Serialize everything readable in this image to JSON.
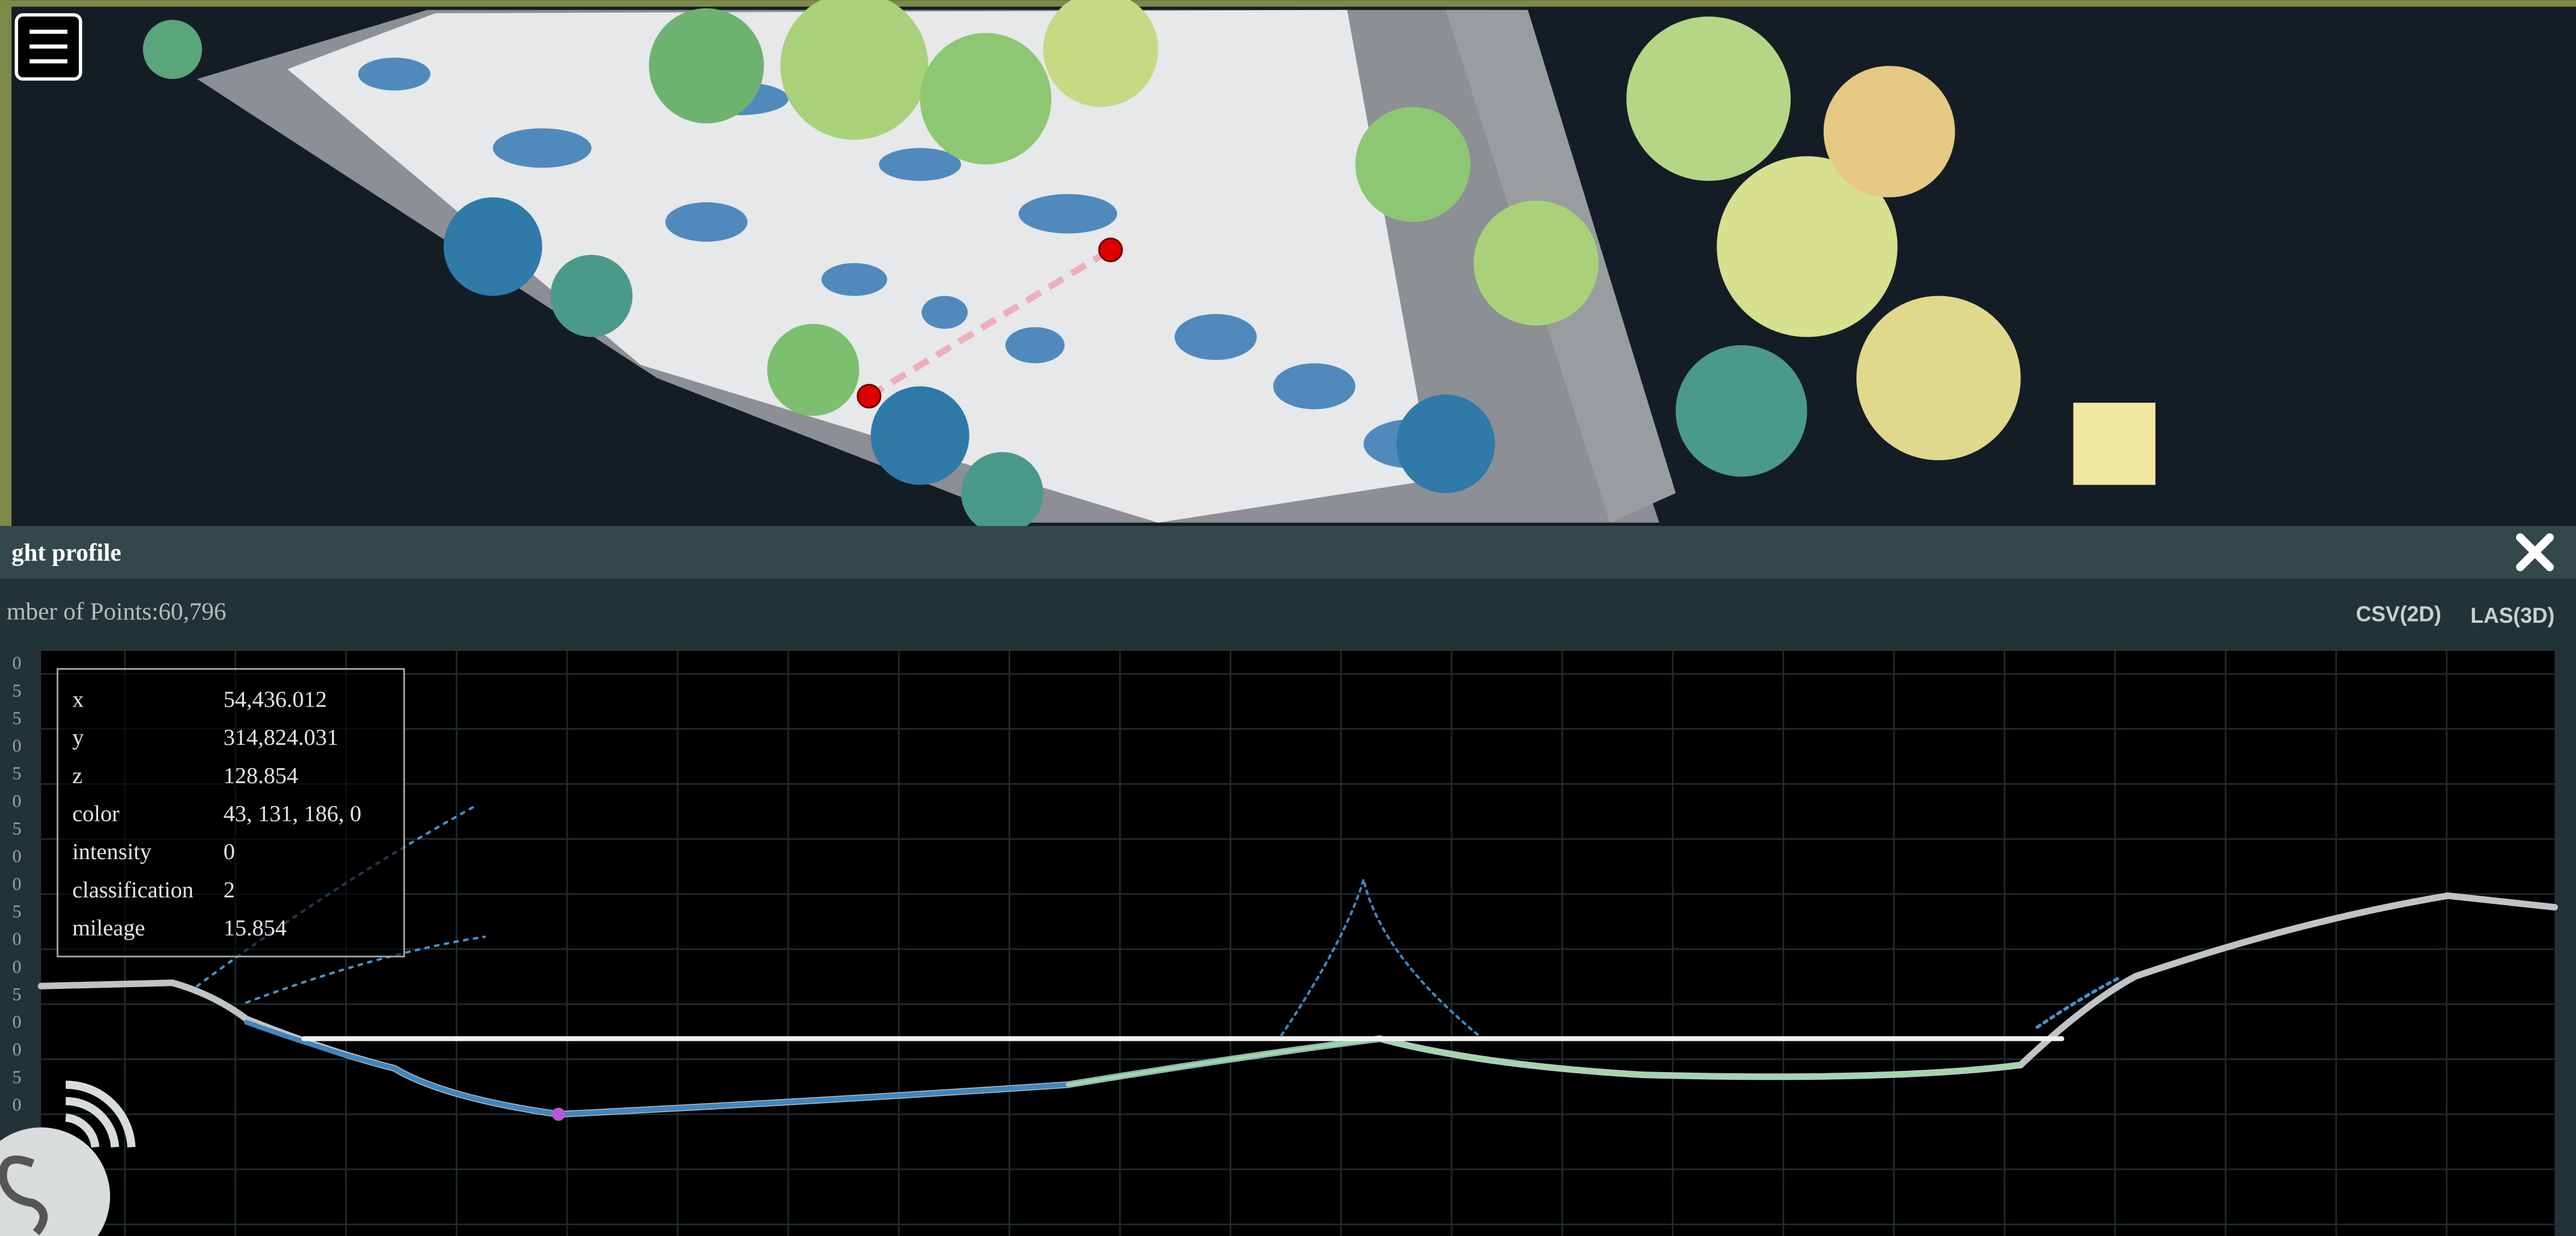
{
  "panel": {
    "title": "ght profile",
    "point_count": "mber of Points:60,796",
    "buttons": [
      "CSV(2D)",
      "LAS(3D)"
    ]
  },
  "y_axis_labels": [
    "0",
    "5",
    "5",
    "0",
    "5",
    "0",
    "5",
    "0",
    "0",
    "5",
    "0",
    "0",
    "5",
    "0",
    "0",
    "5",
    "0"
  ],
  "tooltip": {
    "rows": [
      {
        "key": "x",
        "value": "54,436.012"
      },
      {
        "key": "y",
        "value": "314,824.031"
      },
      {
        "key": "z",
        "value": "128.854"
      },
      {
        "key": "color",
        "value": "43, 131, 186, 0"
      },
      {
        "key": "intensity",
        "value": "0"
      },
      {
        "key": "classification",
        "value": "2"
      },
      {
        "key": "mileage",
        "value": "15.854"
      }
    ]
  }
}
